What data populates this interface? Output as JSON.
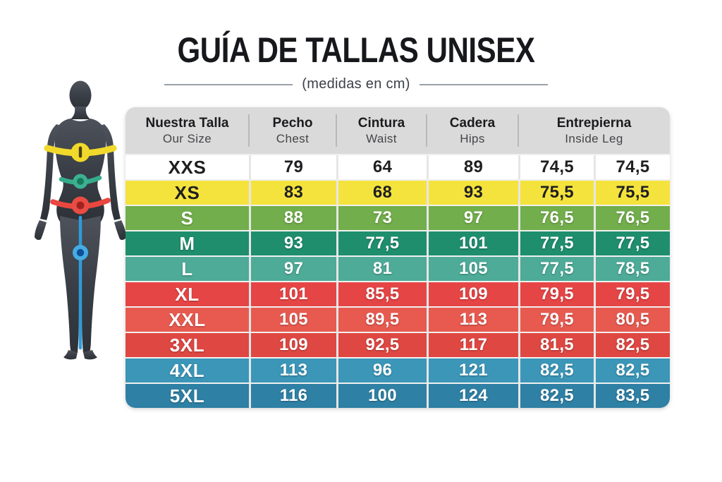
{
  "chart_data": {
    "type": "table",
    "title": "GUÍA DE TALLAS UNISEX",
    "subtitle": "(medidas en cm)",
    "units": "cm",
    "columns": [
      "Nuestra Talla / Our Size",
      "Pecho / Chest",
      "Cintura / Waist",
      "Cadera / Hips",
      "Entrepierna / Inside Leg",
      "Entrepierna / Inside Leg"
    ],
    "rows": [
      [
        "XXS",
        "79",
        "64",
        "89",
        "74,5",
        "74,5"
      ],
      [
        "XS",
        "83",
        "68",
        "93",
        "75,5",
        "75,5"
      ],
      [
        "S",
        "88",
        "73",
        "97",
        "76,5",
        "76,5"
      ],
      [
        "M",
        "93",
        "77,5",
        "101",
        "77,5",
        "77,5"
      ],
      [
        "L",
        "97",
        "81",
        "105",
        "77,5",
        "78,5"
      ],
      [
        "XL",
        "101",
        "85,5",
        "109",
        "79,5",
        "79,5"
      ],
      [
        "XXL",
        "105",
        "89,5",
        "113",
        "79,5",
        "80,5"
      ],
      [
        "3XL",
        "109",
        "92,5",
        "117",
        "81,5",
        "82,5"
      ],
      [
        "4XL",
        "113",
        "96",
        "121",
        "82,5",
        "82,5"
      ],
      [
        "5XL",
        "116",
        "100",
        "124",
        "82,5",
        "83,5"
      ]
    ],
    "row_colors": [
      "#ffffff",
      "#f5e33d",
      "#72ae4b",
      "#1f8e6d",
      "#4dab98",
      "#e64545",
      "#e85a50",
      "#df4742",
      "#3b96b8",
      "#2e80a4"
    ],
    "row_text_colors": [
      "#1f1f21",
      "#1f1f21",
      "#ffffff",
      "#ffffff",
      "#ffffff",
      "#ffffff",
      "#ffffff",
      "#ffffff",
      "#ffffff",
      "#ffffff"
    ],
    "header_bg": "#dadada"
  },
  "table": {
    "headers": [
      {
        "primary": "Nuestra Talla",
        "secondary": "Our Size"
      },
      {
        "primary": "Pecho",
        "secondary": "Chest"
      },
      {
        "primary": "Cintura",
        "secondary": "Waist"
      },
      {
        "primary": "Cadera",
        "secondary": "Hips"
      },
      {
        "primary": "Entrepierna",
        "secondary": "Inside Leg"
      }
    ]
  },
  "figure": {
    "description": "dark mannequin with measurement markers",
    "markers": [
      {
        "name": "chest-band",
        "color": "#f1d92b"
      },
      {
        "name": "waist-band",
        "color": "#35ab8c"
      },
      {
        "name": "hips-band",
        "color": "#e9473f"
      },
      {
        "name": "inside-leg-line",
        "color": "#2f9bd8"
      }
    ]
  }
}
